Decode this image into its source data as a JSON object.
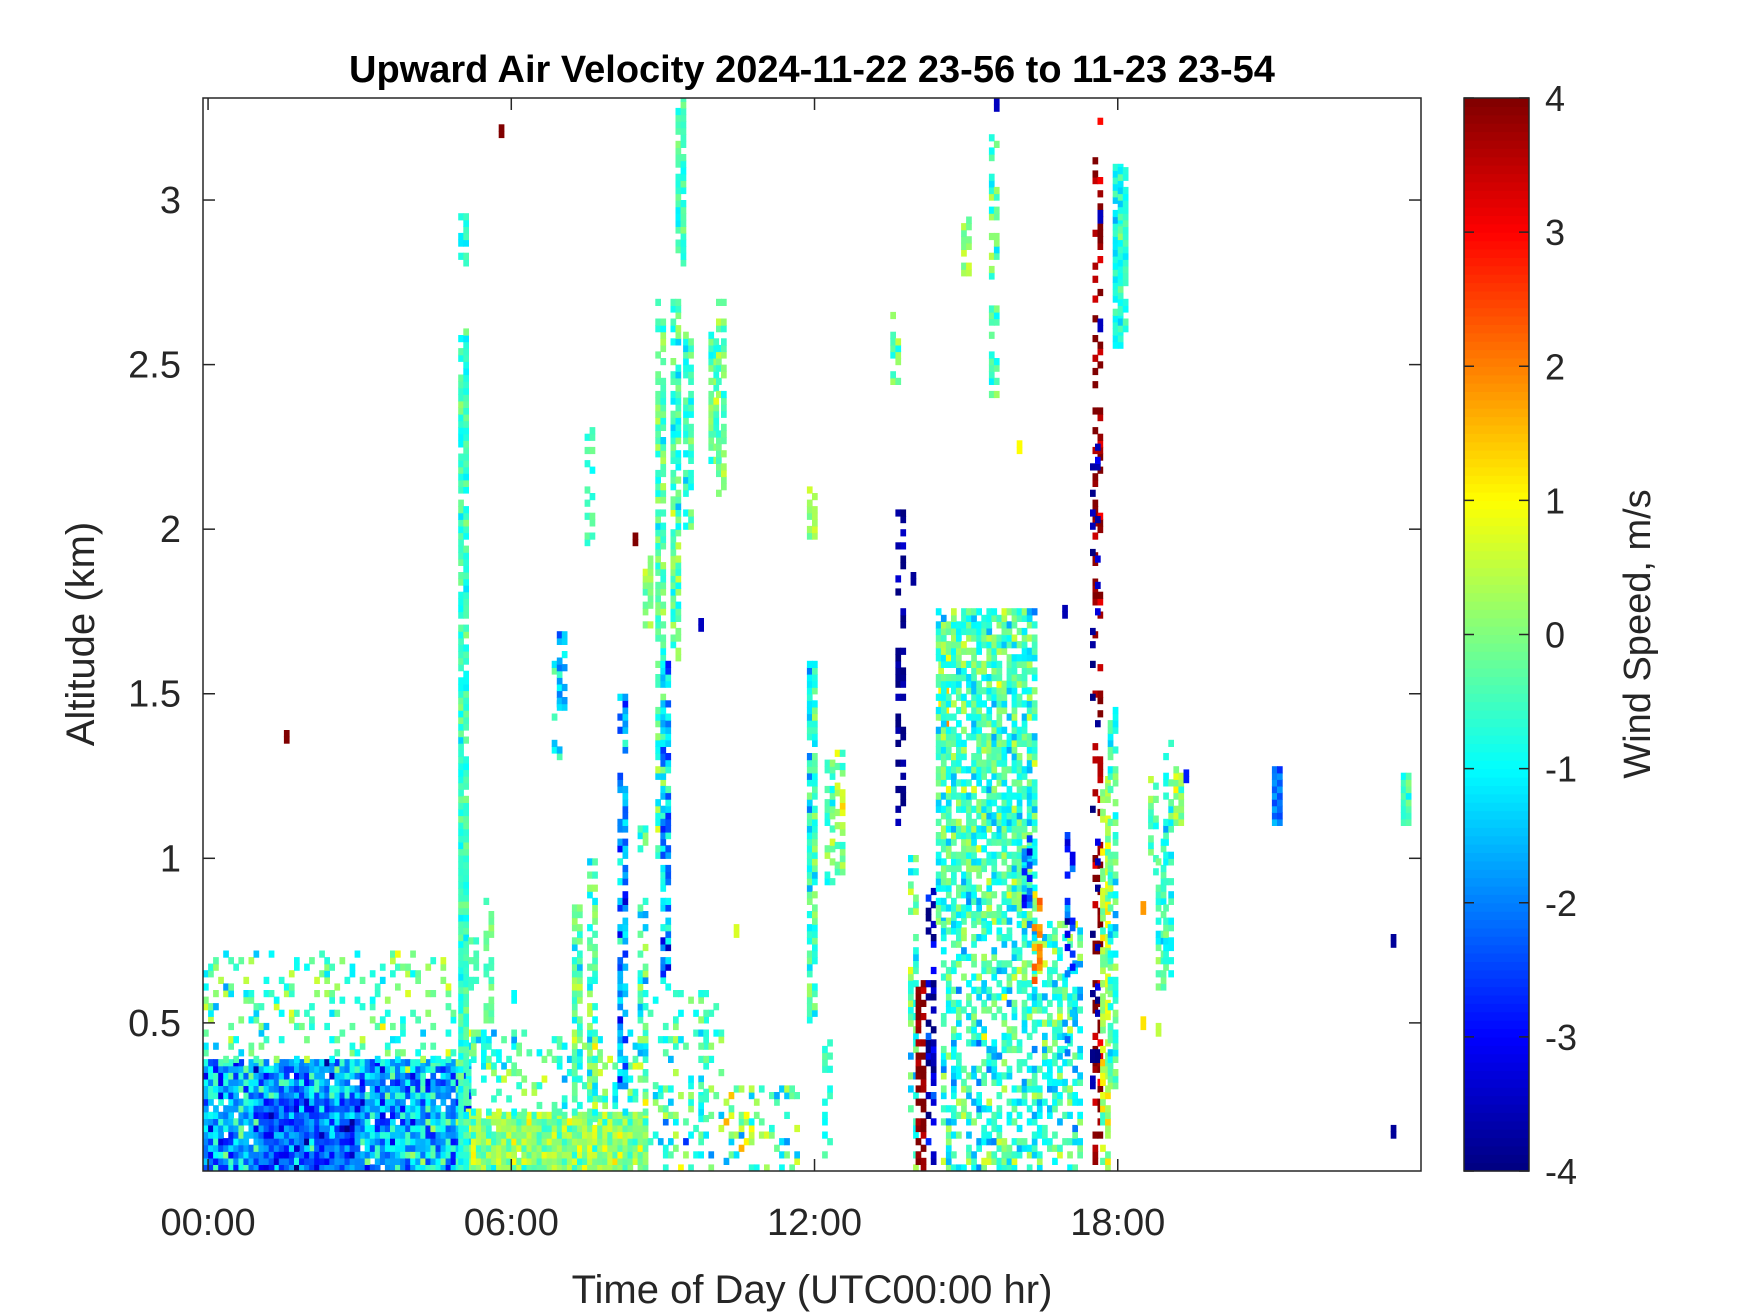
{
  "chart_data": {
    "type": "heatmap",
    "title": "Upward Air Velocity 2024-11-22 23-56 to 11-23 23-54",
    "xlabel": "Time of Day (UTC00:00 hr)",
    "ylabel": "Altitude (km)",
    "xlim": [
      -0.1,
      24.0
    ],
    "ylim": [
      0.05,
      3.31
    ],
    "xticks": [
      0,
      6,
      12,
      18
    ],
    "xtick_labels": [
      "00:00",
      "06:00",
      "12:00",
      "18:00"
    ],
    "yticks": [
      0.5,
      1,
      1.5,
      2,
      2.5,
      3
    ],
    "ytick_labels": [
      "0.5",
      "1",
      "1.5",
      "2",
      "2.5",
      "3"
    ],
    "colorbar": {
      "label": "Wind Speed, m/s",
      "colormap": "jet",
      "clim": [
        -4,
        4
      ],
      "ticks": [
        -4,
        -3,
        -2,
        -1,
        0,
        1,
        2,
        3,
        4
      ],
      "tick_labels": [
        "-4",
        "-3",
        "-2",
        "-1",
        "0",
        "1",
        "2",
        "3",
        "4"
      ]
    },
    "grid": false,
    "bins": {
      "dt_hours": 0.1,
      "dz_km": 0.02
    },
    "features": [
      {
        "kind": "region",
        "t": [
          -0.1,
          5.1
        ],
        "z": [
          0.05,
          0.38
        ],
        "mean": -1.6,
        "spread": 1.0,
        "density": 0.96
      },
      {
        "kind": "region",
        "t": [
          1.0,
          3.0
        ],
        "z": [
          0.05,
          0.26
        ],
        "mean": -2.4,
        "spread": 0.8,
        "density": 0.97
      },
      {
        "kind": "region",
        "t": [
          -0.1,
          5.0
        ],
        "z": [
          0.38,
          0.72
        ],
        "mean": -0.4,
        "spread": 0.7,
        "density": 0.2
      },
      {
        "kind": "region",
        "t": [
          5.1,
          8.6
        ],
        "z": [
          0.05,
          0.22
        ],
        "mean": 0.1,
        "spread": 0.6,
        "density": 0.95
      },
      {
        "kind": "region",
        "t": [
          5.1,
          8.6
        ],
        "z": [
          0.22,
          0.48
        ],
        "mean": -0.4,
        "spread": 0.7,
        "density": 0.3
      },
      {
        "kind": "region",
        "t": [
          8.6,
          11.6
        ],
        "z": [
          0.05,
          0.3
        ],
        "mean": -0.3,
        "spread": 1.1,
        "density": 0.3
      },
      {
        "kind": "region",
        "t": [
          8.6,
          10.2
        ],
        "z": [
          0.3,
          0.6
        ],
        "mean": -0.6,
        "spread": 0.6,
        "density": 0.15
      },
      {
        "kind": "column",
        "t": 5.05,
        "z": [
          0.05,
          2.6
        ],
        "mean": -0.6,
        "spread": 0.4,
        "density": 0.9
      },
      {
        "kind": "column",
        "t": 5.25,
        "z": [
          0.6,
          0.8
        ],
        "mean": -0.5,
        "spread": 0.3,
        "density": 0.6
      },
      {
        "kind": "column",
        "t": 5.55,
        "z": [
          0.5,
          0.9
        ],
        "mean": -0.3,
        "spread": 0.3,
        "density": 0.5
      },
      {
        "kind": "column",
        "t": 5.05,
        "z": [
          2.8,
          2.96
        ],
        "mean": -0.8,
        "spread": 0.3,
        "density": 0.5
      },
      {
        "kind": "column",
        "t": 6.9,
        "z": [
          1.3,
          1.6
        ],
        "mean": -0.7,
        "spread": 0.6,
        "density": 0.4
      },
      {
        "kind": "column",
        "t": 7.0,
        "z": [
          1.45,
          1.7
        ],
        "mean": -1.7,
        "spread": 0.6,
        "density": 0.5
      },
      {
        "kind": "column",
        "t": 7.3,
        "z": [
          0.22,
          0.85
        ],
        "mean": -0.3,
        "spread": 0.6,
        "density": 0.6
      },
      {
        "kind": "column",
        "t": 7.6,
        "z": [
          0.2,
          1.0
        ],
        "mean": -0.4,
        "spread": 0.8,
        "density": 0.6
      },
      {
        "kind": "column",
        "t": 7.55,
        "z": [
          1.95,
          2.3
        ],
        "mean": -0.4,
        "spread": 0.4,
        "density": 0.4
      },
      {
        "kind": "column",
        "t": 8.2,
        "z": [
          0.3,
          1.5
        ],
        "mean": -1.7,
        "spread": 0.8,
        "density": 0.6
      },
      {
        "kind": "column",
        "t": 8.6,
        "z": [
          0.4,
          1.1
        ],
        "mean": -0.9,
        "spread": 0.9,
        "density": 0.5
      },
      {
        "kind": "column",
        "t": 8.7,
        "z": [
          1.7,
          1.92
        ],
        "mean": 0.2,
        "spread": 0.6,
        "density": 0.7
      },
      {
        "kind": "column",
        "t": 8.95,
        "z": [
          1.0,
          2.7
        ],
        "mean": -0.4,
        "spread": 0.7,
        "density": 0.7
      },
      {
        "kind": "column",
        "t": 9.05,
        "z": [
          0.6,
          1.6
        ],
        "mean": -1.7,
        "spread": 0.9,
        "density": 0.6
      },
      {
        "kind": "column",
        "t": 9.25,
        "z": [
          1.6,
          2.7
        ],
        "mean": -0.5,
        "spread": 0.6,
        "density": 0.8
      },
      {
        "kind": "column",
        "t": 9.35,
        "z": [
          2.8,
          3.31
        ],
        "mean": -0.6,
        "spread": 0.4,
        "density": 0.8
      },
      {
        "kind": "column",
        "t": 9.5,
        "z": [
          2.0,
          2.6
        ],
        "mean": -0.5,
        "spread": 0.5,
        "density": 0.7
      },
      {
        "kind": "column",
        "t": 9.8,
        "z": [
          0.2,
          0.6
        ],
        "mean": -0.6,
        "spread": 0.5,
        "density": 0.5
      },
      {
        "kind": "column",
        "t": 10.0,
        "z": [
          2.2,
          2.6
        ],
        "mean": -0.2,
        "spread": 0.6,
        "density": 0.8
      },
      {
        "kind": "column",
        "t": 10.15,
        "z": [
          2.1,
          2.7
        ],
        "mean": -0.1,
        "spread": 0.5,
        "density": 0.7
      },
      {
        "kind": "column",
        "t": 11.95,
        "z": [
          0.5,
          1.6
        ],
        "mean": -0.6,
        "spread": 0.7,
        "density": 0.8
      },
      {
        "kind": "column",
        "t": 11.95,
        "z": [
          1.95,
          2.12
        ],
        "mean": 0.3,
        "spread": 0.3,
        "density": 0.8
      },
      {
        "kind": "column",
        "t": 12.25,
        "z": [
          0.05,
          0.45
        ],
        "mean": -0.6,
        "spread": 0.4,
        "density": 0.3
      },
      {
        "kind": "column",
        "t": 12.3,
        "z": [
          0.9,
          1.3
        ],
        "mean": -0.3,
        "spread": 0.6,
        "density": 0.5
      },
      {
        "kind": "column",
        "t": 12.5,
        "z": [
          0.95,
          1.35
        ],
        "mean": 0.2,
        "spread": 0.6,
        "density": 0.5
      },
      {
        "kind": "column",
        "t": 13.6,
        "z": [
          2.4,
          2.65
        ],
        "mean": -0.3,
        "spread": 0.6,
        "density": 0.6
      },
      {
        "kind": "column",
        "t": 13.7,
        "z": [
          1.1,
          2.05
        ],
        "mean": -3.8,
        "spread": 0.3,
        "density": 0.4
      },
      {
        "kind": "column",
        "t": 13.95,
        "z": [
          0.05,
          1.0
        ],
        "mean": -0.4,
        "spread": 0.8,
        "density": 0.4
      },
      {
        "kind": "column",
        "t": 14.1,
        "z": [
          0.05,
          0.65
        ],
        "mean": 3.9,
        "spread": 0.3,
        "density": 0.6
      },
      {
        "kind": "column",
        "t": 14.3,
        "z": [
          0.05,
          0.9
        ],
        "mean": -3.5,
        "spread": 0.7,
        "density": 0.4
      },
      {
        "kind": "column",
        "t": 14.55,
        "z": [
          1.4,
          1.65
        ],
        "mean": 1.2,
        "spread": 0.6,
        "density": 0.7
      },
      {
        "kind": "region",
        "t": [
          14.4,
          16.4
        ],
        "z": [
          0.8,
          1.75
        ],
        "mean": -0.5,
        "spread": 0.7,
        "density": 0.75
      },
      {
        "kind": "region",
        "t": [
          14.5,
          17.3
        ],
        "z": [
          0.05,
          0.8
        ],
        "mean": -0.7,
        "spread": 0.8,
        "density": 0.5
      },
      {
        "kind": "column",
        "t": 15.55,
        "z": [
          2.4,
          3.2
        ],
        "mean": -0.4,
        "spread": 0.5,
        "density": 0.5
      },
      {
        "kind": "column",
        "t": 15.0,
        "z": [
          2.75,
          2.95
        ],
        "mean": 0.2,
        "spread": 0.3,
        "density": 0.6
      },
      {
        "kind": "column",
        "t": 16.4,
        "z": [
          0.6,
          0.9
        ],
        "mean": 1.8,
        "spread": 0.5,
        "density": 0.6
      },
      {
        "kind": "column",
        "t": 16.2,
        "z": [
          0.85,
          1.1
        ],
        "mean": -2.5,
        "spread": 0.6,
        "density": 0.4
      },
      {
        "kind": "column",
        "t": 17.05,
        "z": [
          0.3,
          1.1
        ],
        "mean": -2.8,
        "spread": 0.8,
        "density": 0.3
      },
      {
        "kind": "column",
        "t": 17.6,
        "z": [
          0.05,
          3.25
        ],
        "mean": 3.8,
        "spread": 0.5,
        "density": 0.35
      },
      {
        "kind": "column",
        "t": 17.55,
        "z": [
          0.3,
          2.25
        ],
        "mean": -3.7,
        "spread": 0.4,
        "density": 0.2
      },
      {
        "kind": "column",
        "t": 17.75,
        "z": [
          0.05,
          1.25
        ],
        "mean": 0.4,
        "spread": 0.7,
        "density": 0.7
      },
      {
        "kind": "column",
        "t": 17.9,
        "z": [
          0.3,
          1.45
        ],
        "mean": -0.6,
        "spread": 0.6,
        "density": 0.6
      },
      {
        "kind": "column",
        "t": 18.0,
        "z": [
          2.55,
          3.1
        ],
        "mean": -0.9,
        "spread": 0.4,
        "density": 0.8
      },
      {
        "kind": "column",
        "t": 18.1,
        "z": [
          2.6,
          3.1
        ],
        "mean": -0.7,
        "spread": 0.4,
        "density": 0.8
      },
      {
        "kind": "column",
        "t": 18.7,
        "z": [
          0.95,
          1.25
        ],
        "mean": -0.4,
        "spread": 0.5,
        "density": 0.6
      },
      {
        "kind": "column",
        "t": 18.85,
        "z": [
          0.6,
          1.05
        ],
        "mean": -0.7,
        "spread": 0.5,
        "density": 0.6
      },
      {
        "kind": "column",
        "t": 19.0,
        "z": [
          0.6,
          1.35
        ],
        "mean": -0.8,
        "spread": 0.6,
        "density": 0.6
      },
      {
        "kind": "column",
        "t": 19.2,
        "z": [
          1.1,
          1.28
        ],
        "mean": 0.2,
        "spread": 0.7,
        "density": 0.8
      },
      {
        "kind": "column",
        "t": 21.15,
        "z": [
          1.1,
          1.3
        ],
        "mean": -2.0,
        "spread": 0.4,
        "density": 0.9
      },
      {
        "kind": "column",
        "t": 23.7,
        "z": [
          1.1,
          1.25
        ],
        "mean": -0.5,
        "spread": 0.3,
        "density": 0.9
      }
    ],
    "points": [
      {
        "t": 1.5,
        "z": 1.37,
        "v": 4.0
      },
      {
        "t": 5.75,
        "z": 3.21,
        "v": 4.0
      },
      {
        "t": 8.4,
        "z": 1.97,
        "v": 4.0
      },
      {
        "t": 9.7,
        "z": 1.71,
        "v": -3.5
      },
      {
        "t": 15.55,
        "z": 3.29,
        "v": -3.5
      },
      {
        "t": 17.6,
        "z": 2.62,
        "v": -3.5
      },
      {
        "t": 17.6,
        "z": 2.95,
        "v": -3.5
      },
      {
        "t": 10.4,
        "z": 0.78,
        "v": 0.7
      },
      {
        "t": 6.0,
        "z": 0.58,
        "v": -1.0
      },
      {
        "t": 13.9,
        "z": 1.85,
        "v": -3.8
      },
      {
        "t": 16.0,
        "z": 2.25,
        "v": 1.0
      },
      {
        "t": 16.9,
        "z": 1.75,
        "v": -3.6
      },
      {
        "t": 23.4,
        "z": 0.75,
        "v": -3.8
      },
      {
        "t": 23.4,
        "z": 0.17,
        "v": -3.8
      },
      {
        "t": 18.45,
        "z": 0.5,
        "v": 1.2
      },
      {
        "t": 18.45,
        "z": 0.85,
        "v": 1.8
      },
      {
        "t": 18.75,
        "z": 0.48,
        "v": 0.5
      },
      {
        "t": 19.3,
        "z": 1.25,
        "v": -2.8
      }
    ]
  }
}
